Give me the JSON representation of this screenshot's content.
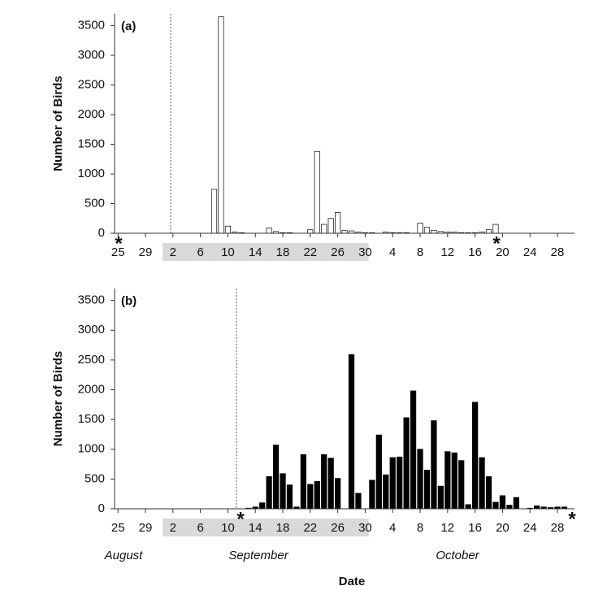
{
  "chart_data": [
    {
      "type": "bar",
      "title": "(a)",
      "ylabel": "Number of Birds",
      "marker_text": "*",
      "categories": [
        "25",
        null,
        null,
        null,
        "29",
        null,
        null,
        null,
        "2",
        null,
        null,
        null,
        "6",
        null,
        null,
        null,
        "10",
        null,
        null,
        null,
        "14",
        null,
        null,
        null,
        "18",
        null,
        null,
        null,
        "22",
        null,
        null,
        null,
        "26",
        null,
        null,
        null,
        "30",
        null,
        null,
        null,
        "4",
        null,
        null,
        null,
        "8",
        null,
        null,
        null,
        "12",
        null,
        null,
        null,
        "16",
        null,
        null,
        null,
        "20",
        null,
        null,
        null,
        "24",
        null,
        null,
        null,
        "28",
        null,
        null
      ],
      "values": [
        0,
        0,
        0,
        0,
        0,
        0,
        0,
        0,
        0,
        0,
        0,
        0,
        0,
        0,
        740,
        3650,
        120,
        20,
        10,
        0,
        0,
        0,
        90,
        30,
        10,
        10,
        0,
        0,
        60,
        1380,
        150,
        250,
        350,
        50,
        40,
        20,
        10,
        10,
        0,
        20,
        10,
        10,
        10,
        0,
        170,
        100,
        50,
        30,
        20,
        20,
        10,
        10,
        10,
        20,
        60,
        150,
        0,
        0,
        0,
        0,
        0,
        0,
        0,
        0,
        0,
        0,
        0
      ],
      "color": "#ffffff",
      "edgecolor": "#222222",
      "ylim": [
        0,
        3700
      ],
      "yticks": [
        0,
        500,
        1000,
        1500,
        2000,
        2500,
        3000,
        3500
      ]
    },
    {
      "type": "bar",
      "title": "(b)",
      "ylabel": "Number of Birds",
      "marker_text": "*",
      "xlabel": "Date",
      "month_labels": [
        "August",
        "September",
        "October"
      ],
      "categories": [
        "25",
        null,
        null,
        null,
        "29",
        null,
        null,
        null,
        "2",
        null,
        null,
        null,
        "6",
        null,
        null,
        null,
        "10",
        null,
        null,
        null,
        "14",
        null,
        null,
        null,
        "18",
        null,
        null,
        null,
        "22",
        null,
        null,
        null,
        "26",
        null,
        null,
        null,
        "30",
        null,
        null,
        null,
        "4",
        null,
        null,
        null,
        "8",
        null,
        null,
        null,
        "12",
        null,
        null,
        null,
        "16",
        null,
        null,
        null,
        "20",
        null,
        null,
        null,
        "24",
        null,
        null,
        null,
        "28",
        null,
        null
      ],
      "values": [
        0,
        0,
        0,
        0,
        0,
        0,
        0,
        0,
        0,
        0,
        0,
        0,
        0,
        0,
        0,
        0,
        0,
        0,
        0,
        10,
        30,
        100,
        540,
        1070,
        590,
        400,
        30,
        910,
        410,
        460,
        910,
        850,
        510,
        0,
        2590,
        260,
        0,
        480,
        1240,
        570,
        860,
        870,
        1530,
        1980,
        1000,
        650,
        1480,
        380,
        960,
        940,
        810,
        70,
        1790,
        860,
        540,
        110,
        220,
        60,
        190,
        0,
        10,
        50,
        30,
        20,
        30,
        30,
        0
      ],
      "color": "#000000",
      "edgecolor": "#000000",
      "ylim": [
        0,
        3700
      ],
      "yticks": [
        0,
        500,
        1000,
        1500,
        2000,
        2500,
        3000,
        3500
      ]
    }
  ]
}
